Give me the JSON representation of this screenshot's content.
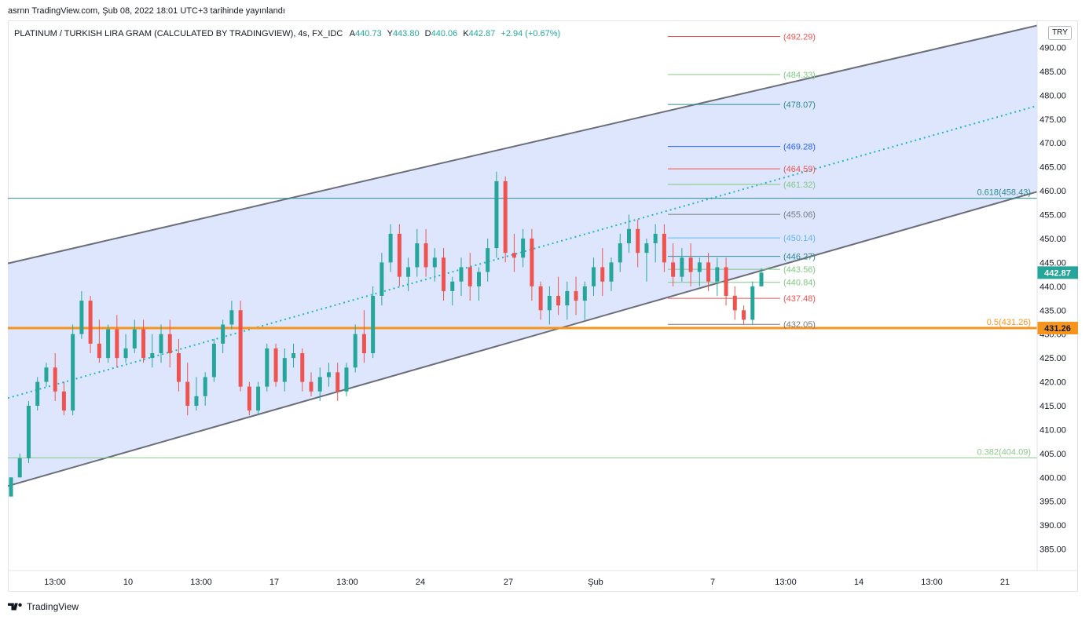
{
  "header": {
    "published": "asrnn TradingView.com, Şub 08, 2022 18:01 UTC+3 tarihinde yayınlandı"
  },
  "legend": {
    "symbol": "PLATINUM / TURKISH LIRA GRAM (CALCULATED BY TRADINGVIEW), 4s, FX_IDC",
    "open_label": "A",
    "open": "440.73",
    "high_label": "Y",
    "high": "443.80",
    "low_label": "D",
    "low": "440.06",
    "close_label": "K",
    "close": "442.87",
    "change": "+2.94 (+0.67%)"
  },
  "currency": "TRY",
  "footer": {
    "brand": "TradingView",
    "logo": "tradingview-logo-icon"
  },
  "colors": {
    "up": "#26a69a",
    "down": "#ef5350",
    "channel_fill": "#dbe5fd",
    "channel_line": "#6b6e78",
    "midline": "#22b5c8",
    "orange": "#f7941d",
    "teal_line": "#2b8c95",
    "green_line": "#8cc98a"
  },
  "chart_data": {
    "type": "candlestick",
    "ylim": [
      380.5,
      495.5
    ],
    "y_ticks": [
      "385.00",
      "390.00",
      "395.00",
      "400.00",
      "405.00",
      "410.00",
      "415.00",
      "420.00",
      "425.00",
      "430.00",
      "435.00",
      "440.00",
      "445.00",
      "450.00",
      "455.00",
      "460.00",
      "465.00",
      "470.00",
      "475.00",
      "480.00",
      "485.00",
      "490.00"
    ],
    "x_ticks": [
      "13:00",
      "10",
      "13:00",
      "17",
      "13:00",
      "24",
      "27",
      "Şub",
      "7",
      "13:00",
      "14",
      "13:00",
      "21"
    ],
    "last_price": "442.87",
    "candles": [
      [
        396,
        400,
        396,
        400
      ],
      [
        400,
        405,
        400,
        404
      ],
      [
        404,
        416,
        403,
        415
      ],
      [
        415,
        421,
        414,
        420
      ],
      [
        420,
        424,
        419,
        423
      ],
      [
        423,
        426,
        416,
        418
      ],
      [
        418,
        420,
        413,
        414
      ],
      [
        414,
        432,
        413,
        430
      ],
      [
        430,
        439,
        429,
        437
      ],
      [
        437,
        438,
        426,
        428
      ],
      [
        428,
        433,
        424,
        425
      ],
      [
        425,
        432,
        424,
        431
      ],
      [
        431,
        434,
        423,
        425
      ],
      [
        425,
        430,
        424,
        427
      ],
      [
        427,
        433,
        426,
        431
      ],
      [
        431,
        433,
        424,
        425
      ],
      [
        425,
        430,
        423,
        426
      ],
      [
        426,
        432,
        424,
        430
      ],
      [
        430,
        433,
        423,
        426
      ],
      [
        426,
        429,
        418,
        420
      ],
      [
        420,
        424,
        413,
        415
      ],
      [
        415,
        421,
        414,
        417
      ],
      [
        417,
        422,
        415,
        421
      ],
      [
        421,
        429,
        420,
        428
      ],
      [
        428,
        433,
        426,
        432
      ],
      [
        432,
        437,
        431,
        435
      ],
      [
        435,
        437,
        418,
        419
      ],
      [
        419,
        420,
        413,
        414
      ],
      [
        414,
        420,
        413,
        419
      ],
      [
        419,
        428,
        418,
        427
      ],
      [
        427,
        428,
        419,
        420
      ],
      [
        420,
        427,
        418,
        425
      ],
      [
        425,
        428,
        423,
        426
      ],
      [
        426,
        427,
        418,
        420
      ],
      [
        420,
        422,
        417,
        418
      ],
      [
        418,
        423,
        416,
        421
      ],
      [
        421,
        424,
        419,
        422
      ],
      [
        422,
        424,
        416,
        418
      ],
      [
        418,
        424,
        417,
        423
      ],
      [
        423,
        432,
        422,
        430
      ],
      [
        430,
        435,
        424,
        426
      ],
      [
        426,
        440,
        425,
        438
      ],
      [
        438,
        447,
        436,
        445
      ],
      [
        445,
        453,
        443,
        451
      ],
      [
        451,
        453,
        440,
        442
      ],
      [
        442,
        446,
        439,
        444
      ],
      [
        444,
        452,
        442,
        449
      ],
      [
        449,
        452,
        442,
        444
      ],
      [
        444,
        448,
        441,
        446
      ],
      [
        446,
        448,
        437,
        439
      ],
      [
        439,
        442,
        436,
        441
      ],
      [
        441,
        446,
        438,
        444
      ],
      [
        444,
        447,
        437,
        440
      ],
      [
        440,
        444,
        437,
        443
      ],
      [
        443,
        450,
        441,
        448
      ],
      [
        448,
        464,
        446,
        462
      ],
      [
        462,
        463,
        445,
        447
      ],
      [
        447,
        451,
        443,
        446
      ],
      [
        446,
        452,
        444,
        450
      ],
      [
        450,
        452,
        437,
        440
      ],
      [
        440,
        441,
        433,
        435
      ],
      [
        435,
        440,
        432,
        438
      ],
      [
        438,
        442,
        434,
        436
      ],
      [
        436,
        441,
        433,
        439
      ],
      [
        439,
        442,
        434,
        437
      ],
      [
        437,
        441,
        433,
        440
      ],
      [
        440,
        446,
        438,
        444
      ],
      [
        444,
        448,
        438,
        441
      ],
      [
        441,
        446,
        439,
        445
      ],
      [
        445,
        451,
        443,
        449
      ],
      [
        449,
        455,
        447,
        452
      ],
      [
        452,
        454,
        444,
        447
      ],
      [
        447,
        450,
        441,
        449
      ],
      [
        449,
        453,
        445,
        451
      ],
      [
        451,
        453,
        443,
        445
      ],
      [
        445,
        449,
        440,
        442
      ],
      [
        442,
        448,
        441,
        446
      ],
      [
        446,
        449,
        440,
        443
      ],
      [
        443,
        446,
        440,
        445
      ],
      [
        445,
        447,
        439,
        441
      ],
      [
        441,
        446,
        438,
        444
      ],
      [
        444,
        446,
        436,
        438
      ],
      [
        438,
        440,
        433,
        435
      ],
      [
        435,
        436,
        432,
        433
      ],
      [
        433,
        441,
        432,
        440
      ],
      [
        440,
        443.8,
        440.06,
        442.87
      ]
    ],
    "channel": {
      "upper": [
        [
          0,
          444.8
        ],
        [
          1310,
          494.6
        ]
      ],
      "lower": [
        [
          0,
          398.2
        ],
        [
          1310,
          459.8
        ]
      ],
      "mid": [
        [
          0,
          416.6
        ],
        [
          1310,
          477.8
        ]
      ]
    },
    "levels": [
      {
        "value": 458.43,
        "label": "0.618(458.43)",
        "color": "#2b8c95",
        "width": 1
      },
      {
        "value": 431.26,
        "label": "0.5(431.26)",
        "color": "#f7941d",
        "width": 3
      },
      {
        "value": 404.09,
        "label": "0.382(404.09)",
        "color": "#8cc98a",
        "width": 1
      }
    ],
    "pivot_levels": [
      {
        "value": 492.29,
        "label": "(492.29)",
        "color": "#ef5350"
      },
      {
        "value": 484.33,
        "label": "(484.33)",
        "color": "#81c784"
      },
      {
        "value": 478.07,
        "label": "(478.07)",
        "color": "#2b8c95"
      },
      {
        "value": 469.28,
        "label": "(469.28)",
        "color": "#2962ff"
      },
      {
        "value": 464.59,
        "label": "(464.59)",
        "color": "#ef5350"
      },
      {
        "value": 461.32,
        "label": "(461.32)",
        "color": "#81c784"
      },
      {
        "value": 455.06,
        "label": "(455.06)",
        "color": "#787b86"
      },
      {
        "value": 450.14,
        "label": "(450.14)",
        "color": "#64b5f6"
      },
      {
        "value": 446.27,
        "label": "(446.27)",
        "color": "#2b8c95"
      },
      {
        "value": 443.56,
        "label": "(443.56)",
        "color": "#81c784"
      },
      {
        "value": 440.84,
        "label": "(440.84)",
        "color": "#81c784"
      },
      {
        "value": 437.48,
        "label": "(437.48)",
        "color": "#ef5350"
      },
      {
        "value": 432.05,
        "label": "(432.05)",
        "color": "#787b86"
      }
    ]
  }
}
